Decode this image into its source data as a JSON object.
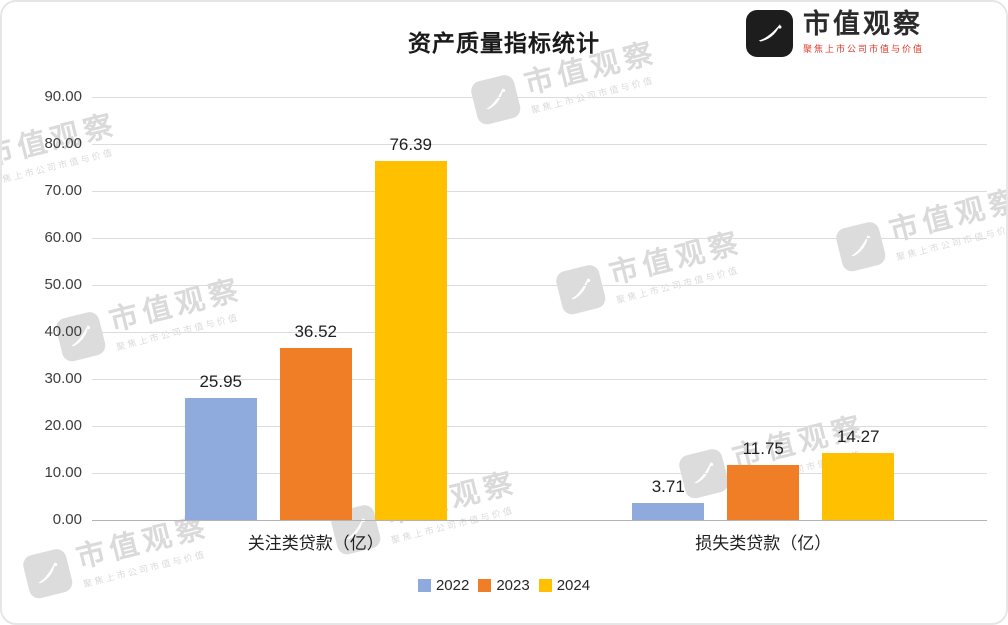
{
  "title": "资产质量指标统计",
  "watermark": {
    "brand": "市值观察",
    "tagline": "聚焦上市公司市值与价值"
  },
  "chart_data": {
    "type": "bar",
    "title": "资产质量指标统计",
    "categories": [
      "关注类贷款（亿）",
      "损失类贷款（亿）"
    ],
    "series": [
      {
        "name": "2022",
        "color": "#8FAADC",
        "values": [
          25.95,
          3.71
        ]
      },
      {
        "name": "2023",
        "color": "#F07E26",
        "values": [
          36.52,
          11.75
        ]
      },
      {
        "name": "2024",
        "color": "#FFC000",
        "values": [
          76.39,
          14.27
        ]
      }
    ],
    "data_labels": [
      [
        "25.95",
        "36.52",
        "76.39"
      ],
      [
        "3.71",
        "11.75",
        "14.27"
      ]
    ],
    "xlabel": "",
    "ylabel": "",
    "ylim": [
      0,
      90
    ],
    "ytick_step": 10,
    "ytick_labels": [
      "0.00",
      "10.00",
      "20.00",
      "30.00",
      "40.00",
      "50.00",
      "60.00",
      "70.00",
      "80.00",
      "90.00"
    ],
    "grid": true,
    "legend_position": "bottom",
    "legend_labels": [
      "2022",
      "2023",
      "2024"
    ]
  }
}
